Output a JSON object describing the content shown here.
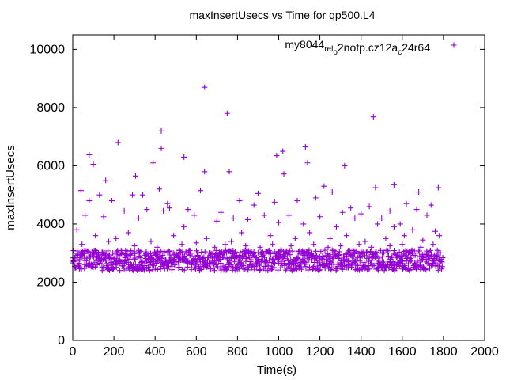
{
  "chart_data": {
    "type": "scatter",
    "title": "maxInsertUsecs vs Time for qp500.L4",
    "xlabel": "Time(s)",
    "ylabel": "maxInsertUsecs",
    "xlim": [
      0,
      2000
    ],
    "ylim": [
      0,
      10500
    ],
    "xticks": [
      0,
      200,
      400,
      600,
      800,
      1000,
      1200,
      1400,
      1600,
      1800,
      2000
    ],
    "yticks": [
      0,
      2000,
      4000,
      6000,
      8000,
      10000
    ],
    "grid": false,
    "legend_position": "top-right",
    "marker": "+",
    "colors": {
      "series": "#9400d3",
      "axis": "#000000",
      "background": "#ffffff"
    },
    "series": [
      {
        "name_parts": [
          "my8044",
          "rel",
          "o",
          "2nofp.cz12a",
          "c",
          "24r64"
        ],
        "name_subscripts": [
          false,
          true,
          true,
          false,
          true,
          false
        ],
        "x_range": [
          0,
          1795
        ],
        "sample_interval_s": 5,
        "baseline_min": 2400,
        "baseline_max": 3100,
        "points": [
          [
            640,
            8700
          ],
          [
            750,
            7800
          ],
          [
            1460,
            7680
          ],
          [
            430,
            7200
          ],
          [
            220,
            6800
          ],
          [
            1130,
            6650
          ],
          [
            1020,
            6500
          ],
          [
            80,
            6380
          ],
          [
            990,
            6350
          ],
          [
            430,
            6600
          ],
          [
            540,
            6300
          ],
          [
            390,
            6100
          ],
          [
            1320,
            6000
          ],
          [
            100,
            6050
          ],
          [
            1140,
            6100
          ],
          [
            1025,
            5720
          ],
          [
            760,
            5800
          ],
          [
            640,
            5800
          ],
          [
            305,
            5650
          ],
          [
            1220,
            5300
          ],
          [
            1560,
            5350
          ],
          [
            160,
            5500
          ],
          [
            1470,
            5250
          ],
          [
            40,
            5150
          ],
          [
            1680,
            5100
          ],
          [
            1775,
            5250
          ],
          [
            420,
            5200
          ],
          [
            340,
            5000
          ],
          [
            900,
            5050
          ],
          [
            1260,
            5100
          ],
          [
            130,
            5000
          ],
          [
            1350,
            4550
          ],
          [
            1400,
            4350
          ],
          [
            620,
            5150
          ],
          [
            810,
            4800
          ],
          [
            980,
            4750
          ],
          [
            1090,
            4800
          ],
          [
            1180,
            4900
          ],
          [
            1620,
            4700
          ],
          [
            1740,
            4650
          ],
          [
            1540,
            4450
          ],
          [
            470,
            4550
          ],
          [
            250,
            4450
          ],
          [
            360,
            4500
          ],
          [
            720,
            4400
          ],
          [
            880,
            4650
          ],
          [
            560,
            4500
          ],
          [
            1310,
            4400
          ],
          [
            1440,
            4600
          ],
          [
            1670,
            4500
          ],
          [
            60,
            4300
          ],
          [
            190,
            4800
          ],
          [
            290,
            5000
          ],
          [
            440,
            4450
          ],
          [
            1050,
            4300
          ],
          [
            1500,
            4200
          ],
          [
            1590,
            4000
          ],
          [
            1720,
            4300
          ],
          [
            80,
            4800
          ],
          [
            150,
            4250
          ],
          [
            320,
            4200
          ],
          [
            460,
            4700
          ],
          [
            590,
            4300
          ],
          [
            700,
            4100
          ],
          [
            780,
            4200
          ],
          [
            850,
            4150
          ],
          [
            930,
            4300
          ],
          [
            1000,
            4050
          ],
          [
            1120,
            4000
          ],
          [
            1200,
            4250
          ],
          [
            1280,
            3900
          ],
          [
            1370,
            4200
          ],
          [
            1480,
            4000
          ],
          [
            1560,
            3900
          ],
          [
            1650,
            3800
          ],
          [
            1760,
            3750
          ],
          [
            20,
            3800
          ],
          [
            110,
            3600
          ],
          [
            210,
            3500
          ],
          [
            270,
            3700
          ],
          [
            380,
            3400
          ],
          [
            490,
            3600
          ],
          [
            540,
            3900
          ],
          [
            650,
            3500
          ],
          [
            770,
            3400
          ],
          [
            820,
            3700
          ],
          [
            960,
            3600
          ],
          [
            1080,
            3500
          ],
          [
            1150,
            3700
          ],
          [
            1250,
            3500
          ],
          [
            1330,
            3600
          ],
          [
            1420,
            3400
          ],
          [
            1520,
            3500
          ],
          [
            1610,
            3600
          ],
          [
            1700,
            3450
          ],
          [
            1780,
            3600
          ],
          [
            45,
            3300
          ],
          [
            175,
            3400
          ],
          [
            300,
            3250
          ],
          [
            410,
            3200
          ],
          [
            530,
            3300
          ],
          [
            600,
            3350
          ],
          [
            690,
            3200
          ],
          [
            740,
            3300
          ],
          [
            840,
            3250
          ],
          [
            910,
            3200
          ],
          [
            970,
            3300
          ],
          [
            1060,
            3250
          ],
          [
            1170,
            3300
          ],
          [
            1240,
            3200
          ],
          [
            1300,
            3250
          ],
          [
            1390,
            3300
          ],
          [
            1450,
            3200
          ],
          [
            1540,
            3250
          ],
          [
            1600,
            3300
          ],
          [
            1690,
            3200
          ],
          [
            1750,
            3300
          ]
        ]
      }
    ]
  }
}
